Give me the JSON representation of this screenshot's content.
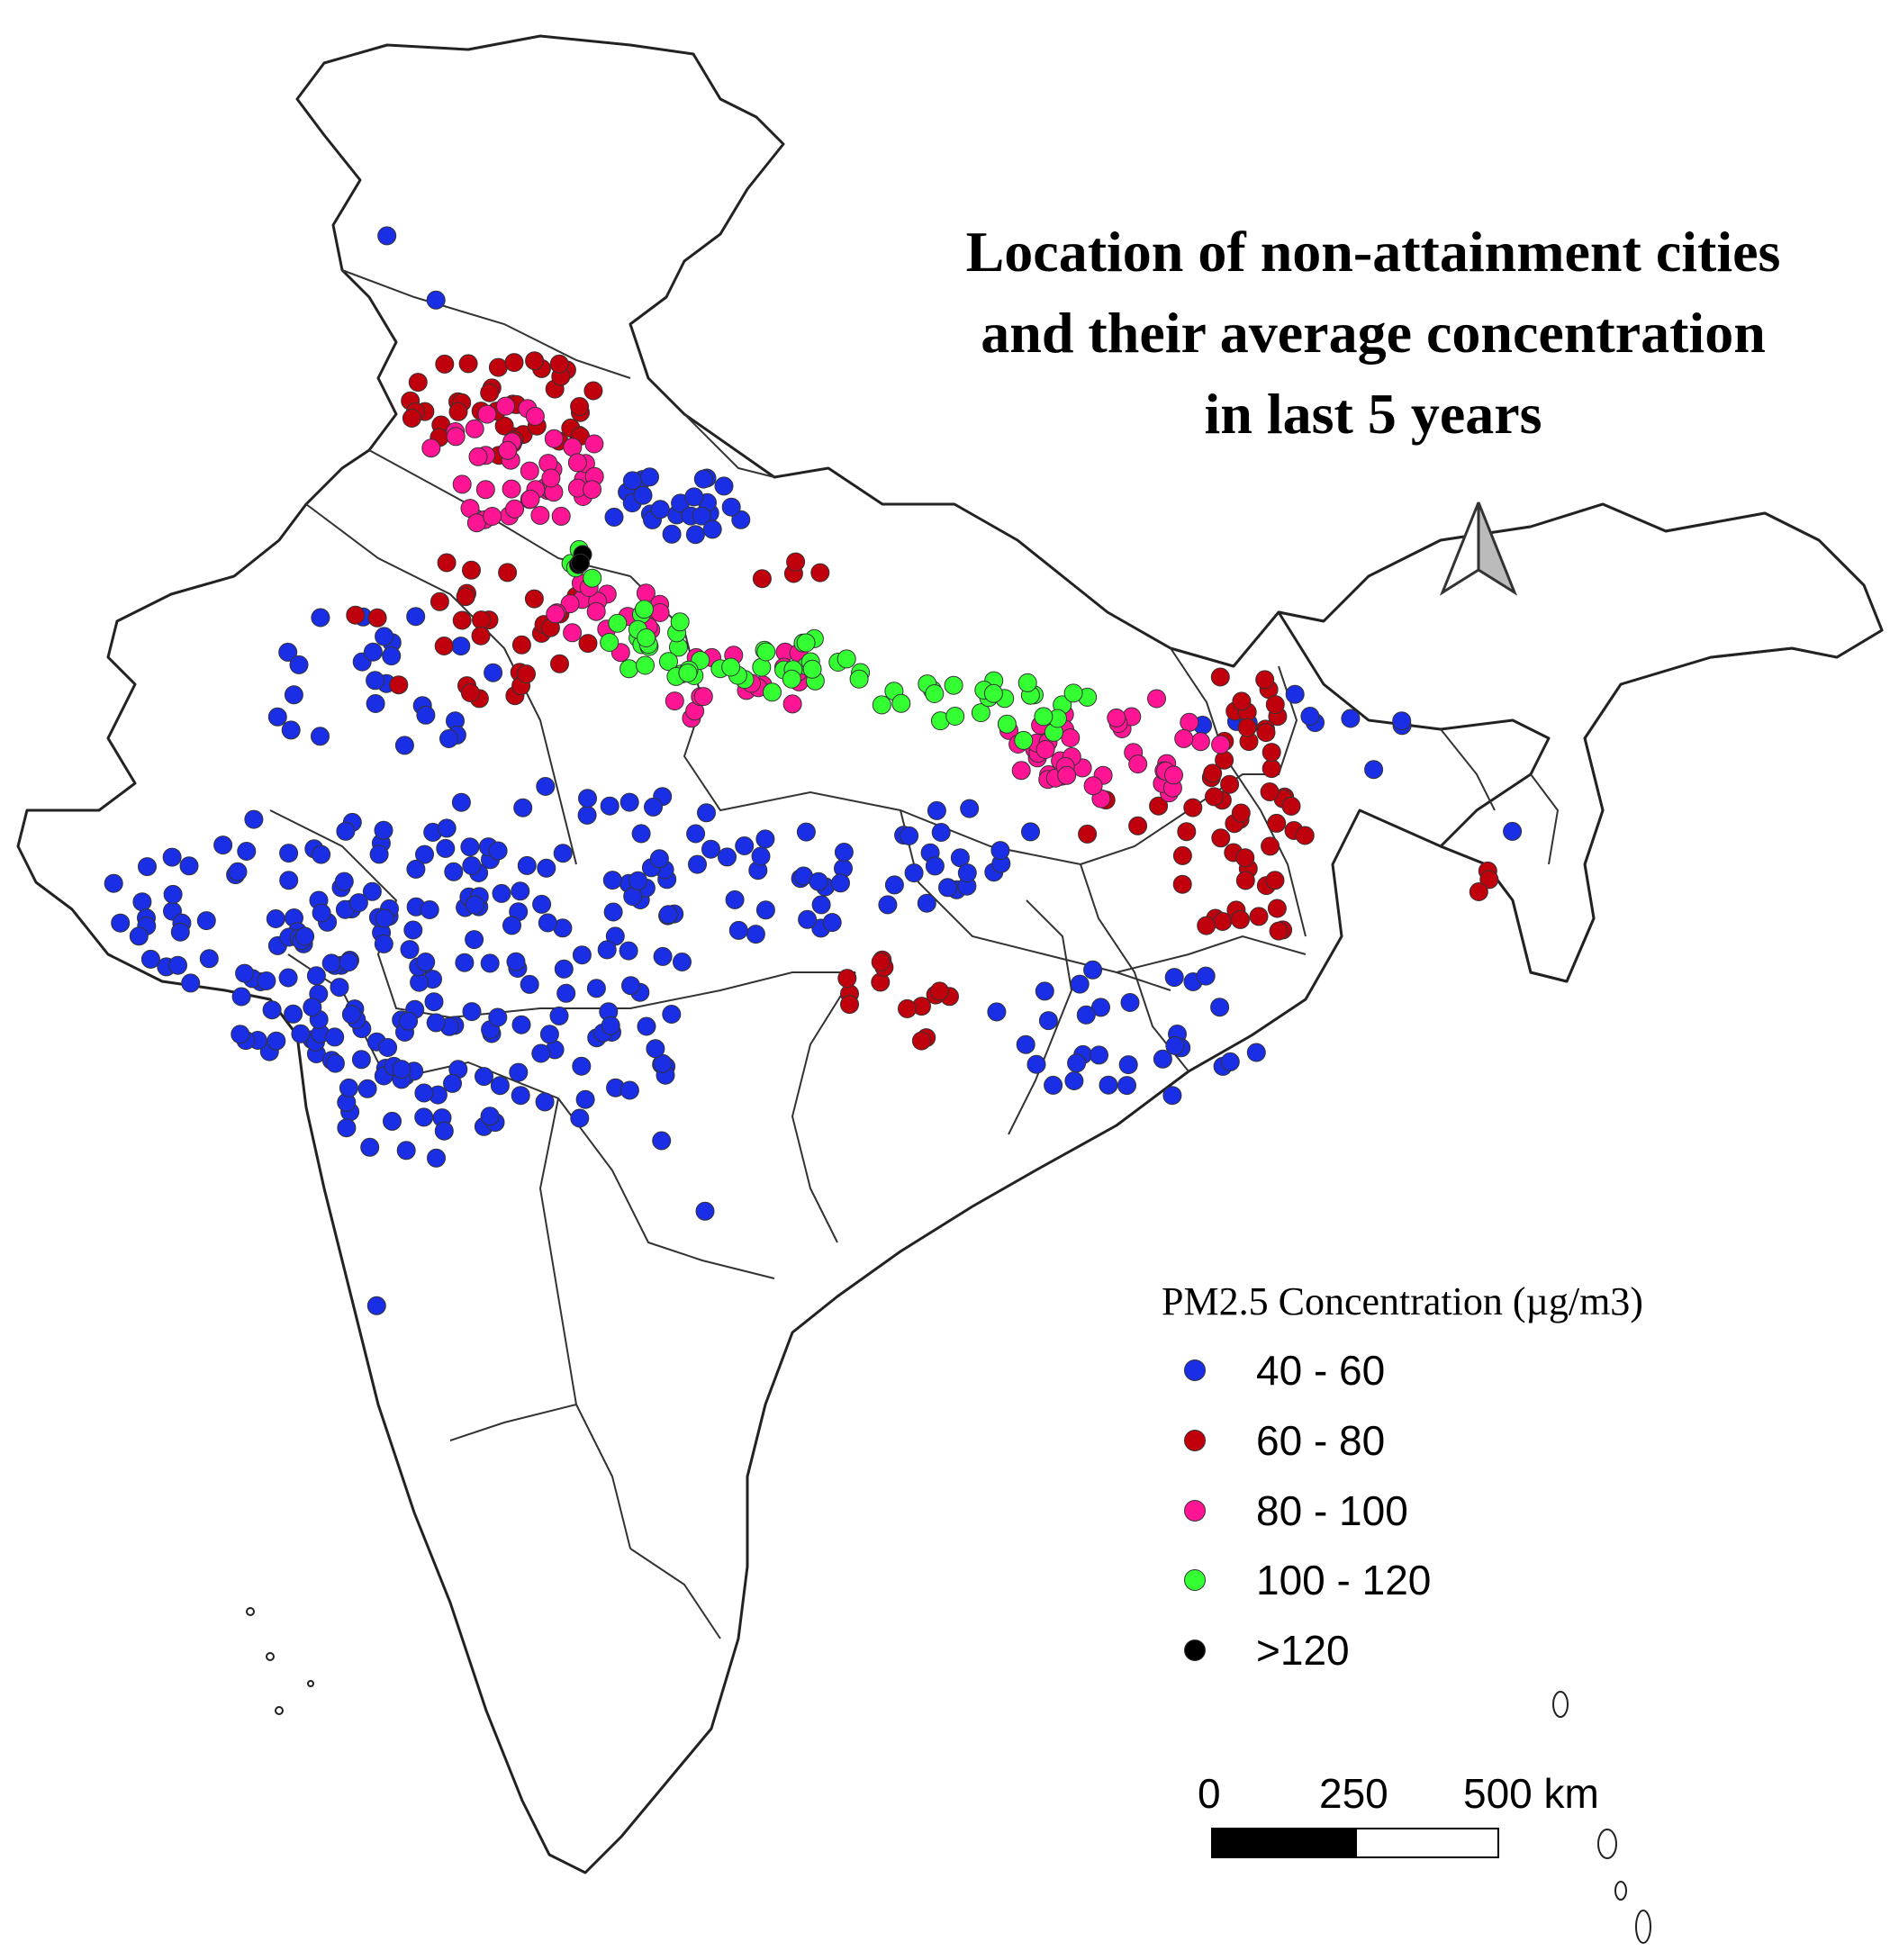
{
  "title": {
    "line1": "Location of non-attainment cities",
    "line2": "and their average concentration",
    "line3": "in last 5 years"
  },
  "north_arrow": {
    "icon": "north-arrow-icon"
  },
  "legend": {
    "title": "PM2.5 Concentration  (µg/m3)",
    "items": [
      {
        "label": "40 - 60",
        "color": "#1a2ee6"
      },
      {
        "label": "60 - 80",
        "color": "#c0000d"
      },
      {
        "label": "80 - 100",
        "color": "#ff1493"
      },
      {
        "label": "100 - 120",
        "color": "#33ff33"
      },
      {
        "label": ">120",
        "color": "#000000"
      }
    ]
  },
  "scale_bar": {
    "labels": [
      "0",
      "250",
      "500 km"
    ]
  }
}
